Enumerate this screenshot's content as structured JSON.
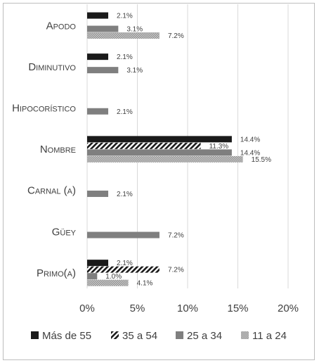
{
  "chart_data": {
    "type": "bar",
    "orientation": "horizontal",
    "categories": [
      "Apodo",
      "Diminutivo",
      "Hipocorístico",
      "Nombre",
      "Carnal (a)",
      "Güey",
      "Primo(a)"
    ],
    "series": [
      {
        "name": "Más de 55",
        "color": "#1a1a1a",
        "pattern": "solid",
        "values": [
          2.1,
          2.1,
          null,
          14.4,
          null,
          null,
          2.1
        ],
        "labels": [
          "2.1%",
          "2.1%",
          "",
          "14.4%",
          "",
          "",
          "2.1%"
        ]
      },
      {
        "name": "35 a 54",
        "color": "#1a1a1a",
        "pattern": "diagonal-hatch",
        "values": [
          null,
          null,
          null,
          11.3,
          null,
          null,
          7.2
        ],
        "labels": [
          "",
          "",
          "",
          "11.3%",
          "",
          "",
          "7.2%"
        ]
      },
      {
        "name": "25 a 34",
        "color": "#7f7f7f",
        "pattern": "solid",
        "values": [
          3.1,
          3.1,
          2.1,
          14.4,
          2.1,
          7.2,
          1.0
        ],
        "labels": [
          "3.1%",
          "3.1%",
          "2.1%",
          "14.4%",
          "2.1%",
          "7.2%",
          "1.0%"
        ]
      },
      {
        "name": "11 a 24",
        "color": "#a6a6a6",
        "pattern": "dotted",
        "values": [
          7.2,
          null,
          null,
          15.5,
          null,
          null,
          4.1
        ],
        "labels": [
          "7.2%",
          "",
          "",
          "15.5%",
          "",
          "",
          "4.1%"
        ]
      }
    ],
    "xlim": [
      0,
      20
    ],
    "xticks": [
      0,
      5,
      10,
      15,
      20
    ],
    "xtick_labels": [
      "0%",
      "5%",
      "10%",
      "15%",
      "20%"
    ],
    "grid": "vertical",
    "legend": "bottom"
  }
}
